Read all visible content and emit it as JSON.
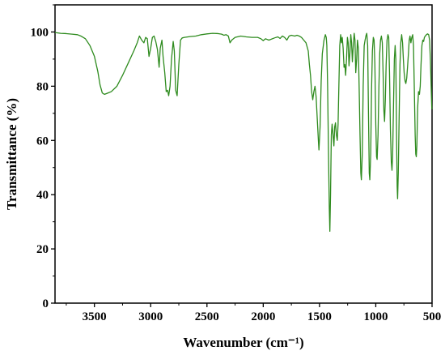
{
  "chart_data": {
    "type": "line",
    "xlabel": "Wavenumber (cm⁻¹)",
    "ylabel": "Transmittance (%)",
    "xlim": [
      3850,
      500
    ],
    "ylim": [
      0,
      110
    ],
    "x_reversed": true,
    "x_ticks": [
      3500,
      3000,
      2500,
      2000,
      1500,
      1000,
      500
    ],
    "x_tick_labels": [
      "3500",
      "3000",
      "2500",
      "2000",
      "1500",
      "1000",
      "500"
    ],
    "y_ticks": [
      0,
      20,
      40,
      60,
      80,
      100
    ],
    "y_tick_labels": [
      "0",
      "20",
      "40",
      "60",
      "80",
      "100"
    ],
    "grid": false,
    "legend": "none",
    "series": [
      {
        "color": "#2e8b1e",
        "points": [
          [
            3850,
            99.8
          ],
          [
            3800,
            99.5
          ],
          [
            3750,
            99.4
          ],
          [
            3700,
            99.2
          ],
          [
            3650,
            99.0
          ],
          [
            3620,
            98.5
          ],
          [
            3580,
            97.5
          ],
          [
            3540,
            95.0
          ],
          [
            3500,
            91.0
          ],
          [
            3470,
            85.5
          ],
          [
            3450,
            80.5
          ],
          [
            3430,
            77.5
          ],
          [
            3410,
            77.0
          ],
          [
            3380,
            77.5
          ],
          [
            3350,
            78.0
          ],
          [
            3300,
            80.0
          ],
          [
            3250,
            84.0
          ],
          [
            3200,
            88.5
          ],
          [
            3150,
            93.0
          ],
          [
            3120,
            96.0
          ],
          [
            3100,
            98.5
          ],
          [
            3080,
            97.0
          ],
          [
            3060,
            96.0
          ],
          [
            3045,
            98.0
          ],
          [
            3030,
            97.5
          ],
          [
            3015,
            91.0
          ],
          [
            3000,
            94.0
          ],
          [
            2985,
            98.0
          ],
          [
            2970,
            98.5
          ],
          [
            2955,
            96.5
          ],
          [
            2940,
            93.5
          ],
          [
            2925,
            87.0
          ],
          [
            2915,
            94.0
          ],
          [
            2900,
            97.0
          ],
          [
            2890,
            91.0
          ],
          [
            2875,
            85.0
          ],
          [
            2862,
            78.0
          ],
          [
            2850,
            78.5
          ],
          [
            2840,
            76.5
          ],
          [
            2828,
            80.0
          ],
          [
            2815,
            90.0
          ],
          [
            2800,
            96.5
          ],
          [
            2790,
            93.0
          ],
          [
            2778,
            78.5
          ],
          [
            2765,
            76.5
          ],
          [
            2750,
            88.0
          ],
          [
            2735,
            97.0
          ],
          [
            2720,
            97.8
          ],
          [
            2700,
            98.0
          ],
          [
            2650,
            98.3
          ],
          [
            2600,
            98.5
          ],
          [
            2550,
            99.0
          ],
          [
            2500,
            99.3
          ],
          [
            2450,
            99.5
          ],
          [
            2400,
            99.4
          ],
          [
            2370,
            99.2
          ],
          [
            2350,
            98.8
          ],
          [
            2330,
            99.0
          ],
          [
            2310,
            98.5
          ],
          [
            2295,
            96.0
          ],
          [
            2280,
            97.0
          ],
          [
            2250,
            98.0
          ],
          [
            2200,
            98.5
          ],
          [
            2150,
            98.2
          ],
          [
            2100,
            98.0
          ],
          [
            2050,
            98.0
          ],
          [
            2020,
            97.5
          ],
          [
            2000,
            96.8
          ],
          [
            1980,
            97.5
          ],
          [
            1950,
            97.0
          ],
          [
            1900,
            97.8
          ],
          [
            1870,
            98.2
          ],
          [
            1850,
            97.6
          ],
          [
            1830,
            98.5
          ],
          [
            1810,
            98.0
          ],
          [
            1790,
            97.0
          ],
          [
            1770,
            98.5
          ],
          [
            1750,
            98.8
          ],
          [
            1720,
            98.5
          ],
          [
            1700,
            98.8
          ],
          [
            1680,
            98.5
          ],
          [
            1660,
            98.0
          ],
          [
            1640,
            97.0
          ],
          [
            1620,
            96.0
          ],
          [
            1600,
            93.0
          ],
          [
            1590,
            88.0
          ],
          [
            1580,
            84.0
          ],
          [
            1570,
            78.0
          ],
          [
            1560,
            75.0
          ],
          [
            1550,
            78.0
          ],
          [
            1540,
            80.0
          ],
          [
            1530,
            76.0
          ],
          [
            1520,
            68.0
          ],
          [
            1510,
            60.0
          ],
          [
            1505,
            56.5
          ],
          [
            1495,
            65.0
          ],
          [
            1485,
            82.0
          ],
          [
            1475,
            92.0
          ],
          [
            1460,
            97.0
          ],
          [
            1448,
            99.0
          ],
          [
            1440,
            98.0
          ],
          [
            1435,
            95.0
          ],
          [
            1428,
            80.0
          ],
          [
            1420,
            55.0
          ],
          [
            1413,
            35.0
          ],
          [
            1408,
            26.5
          ],
          [
            1402,
            40.0
          ],
          [
            1395,
            62.0
          ],
          [
            1388,
            66.0
          ],
          [
            1380,
            62.0
          ],
          [
            1372,
            58.0
          ],
          [
            1365,
            65.0
          ],
          [
            1358,
            66.5
          ],
          [
            1350,
            62.0
          ],
          [
            1342,
            60.0
          ],
          [
            1335,
            66.0
          ],
          [
            1328,
            80.0
          ],
          [
            1320,
            95.0
          ],
          [
            1312,
            99.0
          ],
          [
            1305,
            96.0
          ],
          [
            1298,
            98.0
          ],
          [
            1290,
            94.0
          ],
          [
            1282,
            87.0
          ],
          [
            1275,
            88.0
          ],
          [
            1268,
            84.0
          ],
          [
            1260,
            90.0
          ],
          [
            1252,
            98.0
          ],
          [
            1245,
            96.0
          ],
          [
            1238,
            87.5
          ],
          [
            1230,
            92.0
          ],
          [
            1222,
            99.0
          ],
          [
            1215,
            96.0
          ],
          [
            1208,
            89.0
          ],
          [
            1200,
            95.0
          ],
          [
            1192,
            99.5
          ],
          [
            1185,
            97.0
          ],
          [
            1178,
            85.0
          ],
          [
            1170,
            90.0
          ],
          [
            1163,
            97.0
          ],
          [
            1155,
            94.0
          ],
          [
            1148,
            80.0
          ],
          [
            1140,
            62.0
          ],
          [
            1133,
            48.0
          ],
          [
            1128,
            45.5
          ],
          [
            1120,
            55.0
          ],
          [
            1112,
            80.0
          ],
          [
            1103,
            95.0
          ],
          [
            1095,
            97.0
          ],
          [
            1088,
            98.5
          ],
          [
            1080,
            99.5
          ],
          [
            1072,
            95.0
          ],
          [
            1065,
            70.0
          ],
          [
            1058,
            48.0
          ],
          [
            1053,
            45.5
          ],
          [
            1045,
            55.0
          ],
          [
            1038,
            78.0
          ],
          [
            1030,
            93.0
          ],
          [
            1022,
            98.0
          ],
          [
            1015,
            97.0
          ],
          [
            1008,
            88.0
          ],
          [
            1000,
            66.0
          ],
          [
            993,
            54.0
          ],
          [
            988,
            53.0
          ],
          [
            980,
            62.0
          ],
          [
            972,
            80.0
          ],
          [
            965,
            92.0
          ],
          [
            958,
            97.0
          ],
          [
            950,
            98.5
          ],
          [
            942,
            96.0
          ],
          [
            935,
            85.0
          ],
          [
            928,
            71.0
          ],
          [
            922,
            67.0
          ],
          [
            915,
            75.0
          ],
          [
            908,
            88.0
          ],
          [
            900,
            97.0
          ],
          [
            892,
            99.0
          ],
          [
            885,
            98.0
          ],
          [
            878,
            85.0
          ],
          [
            870,
            64.0
          ],
          [
            862,
            52.0
          ],
          [
            856,
            49.0
          ],
          [
            850,
            55.0
          ],
          [
            842,
            74.0
          ],
          [
            835,
            90.0
          ],
          [
            828,
            95.0
          ],
          [
            822,
            90.0
          ],
          [
            815,
            60.0
          ],
          [
            810,
            43.0
          ],
          [
            806,
            38.5
          ],
          [
            800,
            48.0
          ],
          [
            792,
            70.0
          ],
          [
            785,
            88.0
          ],
          [
            778,
            96.0
          ],
          [
            770,
            99.0
          ],
          [
            762,
            96.0
          ],
          [
            755,
            90.0
          ],
          [
            748,
            85.0
          ],
          [
            740,
            82.0
          ],
          [
            733,
            81.0
          ],
          [
            725,
            83.0
          ],
          [
            718,
            87.0
          ],
          [
            710,
            92.0
          ],
          [
            703,
            97.0
          ],
          [
            696,
            98.5
          ],
          [
            688,
            96.0
          ],
          [
            680,
            98.0
          ],
          [
            672,
            99.0
          ],
          [
            665,
            95.0
          ],
          [
            658,
            80.0
          ],
          [
            650,
            62.0
          ],
          [
            645,
            55.0
          ],
          [
            640,
            54.0
          ],
          [
            635,
            58.0
          ],
          [
            628,
            72.0
          ],
          [
            620,
            78.0
          ],
          [
            612,
            77.0
          ],
          [
            605,
            80.0
          ],
          [
            598,
            88.0
          ],
          [
            590,
            95.0
          ],
          [
            582,
            97.0
          ],
          [
            575,
            96.5
          ],
          [
            568,
            98.0
          ],
          [
            560,
            98.5
          ],
          [
            550,
            99.0
          ],
          [
            540,
            99.3
          ],
          [
            530,
            99.0
          ],
          [
            522,
            97.0
          ],
          [
            515,
            90.0
          ],
          [
            508,
            80.0
          ],
          [
            502,
            71.5
          ]
        ]
      }
    ]
  }
}
